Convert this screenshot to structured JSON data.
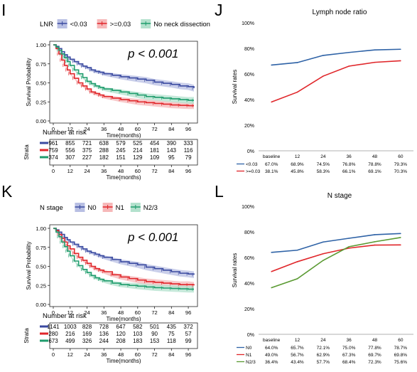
{
  "chart_data": [
    {
      "panel": "I",
      "type": "line",
      "subtype": "kaplan-meier",
      "legend_title": "LNR",
      "legend_position": "top",
      "ylabel": "Survival Probability",
      "xlabel": "Time(months)",
      "ylim": [
        0,
        1
      ],
      "xlim": [
        0,
        100
      ],
      "x_ticks": [
        "0",
        "12",
        "24",
        "36",
        "48",
        "60",
        "72",
        "84",
        "96"
      ],
      "y_ticks": [
        "0.00",
        "0.25",
        "0.50",
        "0.75",
        "1.00"
      ],
      "annotation": "p < 0.001",
      "series": [
        {
          "name": "<0.03",
          "color": "#3a4aa0",
          "band": "#b8bfe3",
          "x": [
            0,
            2,
            4,
            6,
            8,
            10,
            12,
            15,
            18,
            21,
            24,
            27,
            30,
            33,
            36,
            42,
            48,
            54,
            60,
            66,
            72,
            78,
            84,
            90,
            96,
            100
          ],
          "y": [
            1.0,
            0.98,
            0.95,
            0.91,
            0.87,
            0.84,
            0.81,
            0.78,
            0.75,
            0.72,
            0.7,
            0.67,
            0.65,
            0.64,
            0.62,
            0.6,
            0.58,
            0.565,
            0.55,
            0.535,
            0.51,
            0.495,
            0.48,
            0.46,
            0.45,
            0.43
          ]
        },
        {
          "name": ">=0.03",
          "color": "#e0262a",
          "band": "#f6b8b9",
          "x": [
            0,
            2,
            4,
            6,
            8,
            10,
            12,
            15,
            18,
            21,
            24,
            27,
            30,
            33,
            36,
            42,
            48,
            54,
            60,
            66,
            72,
            78,
            84,
            90,
            96,
            100
          ],
          "y": [
            1.0,
            0.95,
            0.88,
            0.8,
            0.73,
            0.67,
            0.62,
            0.56,
            0.5,
            0.46,
            0.42,
            0.38,
            0.36,
            0.34,
            0.32,
            0.3,
            0.28,
            0.265,
            0.25,
            0.24,
            0.23,
            0.22,
            0.21,
            0.205,
            0.2,
            0.2
          ]
        },
        {
          "name": "No neck dissection",
          "color": "#1e9c6c",
          "band": "#b3e1cd",
          "x": [
            0,
            2,
            4,
            6,
            8,
            10,
            12,
            15,
            18,
            21,
            24,
            27,
            30,
            33,
            36,
            42,
            48,
            54,
            60,
            66,
            72,
            78,
            84,
            90,
            96,
            100
          ],
          "y": [
            1.0,
            0.97,
            0.93,
            0.88,
            0.83,
            0.78,
            0.73,
            0.67,
            0.62,
            0.57,
            0.52,
            0.49,
            0.46,
            0.44,
            0.42,
            0.4,
            0.38,
            0.36,
            0.34,
            0.32,
            0.31,
            0.3,
            0.29,
            0.28,
            0.27,
            0.27
          ]
        }
      ],
      "risk_table": {
        "title": "Number at risk",
        "ylabel": "Strata",
        "xlabel": "Time(months)",
        "x_ticks": [
          "0",
          "12",
          "24",
          "36",
          "48",
          "60",
          "72",
          "84",
          "96"
        ],
        "rows": [
          {
            "color": "#3a4aa0",
            "values": [
              "961",
              "855",
              "721",
              "638",
              "579",
              "525",
              "454",
              "390",
              "333"
            ]
          },
          {
            "color": "#e0262a",
            "values": [
              "759",
              "556",
              "375",
              "288",
              "245",
              "214",
              "181",
              "143",
              "116"
            ]
          },
          {
            "color": "#1e9c6c",
            "values": [
              "374",
              "307",
              "227",
              "182",
              "151",
              "129",
              "109",
              "95",
              "79"
            ]
          }
        ]
      }
    },
    {
      "panel": "J",
      "type": "line",
      "title": "Lymph node ratio",
      "ylabel": "Survival rates",
      "ylim": [
        0,
        100
      ],
      "y_ticks": [
        "0%",
        "20%",
        "40%",
        "60%",
        "80%",
        "100%"
      ],
      "categories": [
        "baseline",
        "12",
        "24",
        "36",
        "48",
        "60"
      ],
      "series": [
        {
          "name": "<0.03",
          "color": "#2e62a6",
          "values": [
            67.0,
            68.9,
            74.5,
            76.8,
            78.8,
            79.3
          ],
          "labels": [
            "67.0%",
            "68.9%",
            "74.5%",
            "76.8%",
            "78.8%",
            "79.3%"
          ]
        },
        {
          "name": ">=0.03",
          "color": "#e0262a",
          "values": [
            38.1,
            45.8,
            58.3,
            66.1,
            69.1,
            70.3
          ],
          "labels": [
            "38.1%",
            "45.8%",
            "58.3%",
            "66.1%",
            "69.1%",
            "70.3%"
          ]
        }
      ]
    },
    {
      "panel": "K",
      "type": "line",
      "subtype": "kaplan-meier",
      "legend_title": "N stage",
      "legend_position": "top",
      "ylabel": "Survival Probability",
      "xlabel": "Time(months)",
      "ylim": [
        0,
        1
      ],
      "xlim": [
        0,
        100
      ],
      "x_ticks": [
        "0",
        "12",
        "24",
        "36",
        "48",
        "60",
        "72",
        "84",
        "96"
      ],
      "y_ticks": [
        "0.00",
        "0.25",
        "0.50",
        "0.75",
        "1.00"
      ],
      "annotation": "p < 0.001",
      "series": [
        {
          "name": "N0",
          "color": "#3a4aa0",
          "band": "#b8bfe3",
          "x": [
            0,
            2,
            4,
            6,
            8,
            10,
            12,
            15,
            18,
            21,
            24,
            27,
            30,
            33,
            36,
            42,
            48,
            54,
            60,
            66,
            72,
            78,
            84,
            90,
            96,
            100
          ],
          "y": [
            1.0,
            0.98,
            0.95,
            0.92,
            0.88,
            0.85,
            0.82,
            0.79,
            0.76,
            0.73,
            0.7,
            0.68,
            0.66,
            0.64,
            0.62,
            0.59,
            0.56,
            0.54,
            0.52,
            0.49,
            0.47,
            0.45,
            0.43,
            0.41,
            0.4,
            0.39
          ]
        },
        {
          "name": "N1",
          "color": "#e0262a",
          "band": "#f6b8b9",
          "x": [
            0,
            2,
            4,
            6,
            8,
            10,
            12,
            15,
            18,
            21,
            24,
            27,
            30,
            33,
            36,
            42,
            48,
            54,
            60,
            66,
            72,
            78,
            84,
            90,
            96,
            100
          ],
          "y": [
            1.0,
            0.97,
            0.92,
            0.87,
            0.82,
            0.77,
            0.73,
            0.67,
            0.62,
            0.58,
            0.54,
            0.5,
            0.47,
            0.45,
            0.43,
            0.39,
            0.36,
            0.34,
            0.32,
            0.3,
            0.29,
            0.28,
            0.27,
            0.26,
            0.26,
            0.25
          ]
        },
        {
          "name": "N2/3",
          "color": "#1e9c6c",
          "band": "#b3e1cd",
          "x": [
            0,
            2,
            4,
            6,
            8,
            10,
            12,
            15,
            18,
            21,
            24,
            27,
            30,
            33,
            36,
            42,
            48,
            54,
            60,
            66,
            72,
            78,
            84,
            90,
            96,
            100
          ],
          "y": [
            1.0,
            0.95,
            0.89,
            0.82,
            0.76,
            0.7,
            0.64,
            0.57,
            0.51,
            0.46,
            0.42,
            0.38,
            0.35,
            0.33,
            0.31,
            0.28,
            0.26,
            0.25,
            0.24,
            0.23,
            0.22,
            0.215,
            0.21,
            0.205,
            0.2,
            0.2
          ]
        }
      ],
      "risk_table": {
        "title": "Number at risk",
        "ylabel": "Strata",
        "xlabel": "Time(months)",
        "x_ticks": [
          "0",
          "12",
          "24",
          "36",
          "48",
          "60",
          "72",
          "84",
          "96"
        ],
        "rows": [
          {
            "color": "#3a4aa0",
            "values": [
              "1141",
              "1003",
              "828",
              "728",
              "647",
              "582",
              "501",
              "435",
              "372"
            ]
          },
          {
            "color": "#e0262a",
            "values": [
              "280",
              "216",
              "169",
              "136",
              "120",
              "103",
              "90",
              "75",
              "57"
            ]
          },
          {
            "color": "#1e9c6c",
            "values": [
              "673",
              "499",
              "326",
              "244",
              "208",
              "183",
              "153",
              "118",
              "99"
            ]
          }
        ]
      }
    },
    {
      "panel": "L",
      "type": "line",
      "title": "N stage",
      "ylabel": "Survival rates",
      "ylim": [
        0,
        100
      ],
      "y_ticks": [
        "0%",
        "20%",
        "40%",
        "60%",
        "80%",
        "100%"
      ],
      "categories": [
        "baseline",
        "12",
        "24",
        "36",
        "48",
        "60"
      ],
      "series": [
        {
          "name": "N0",
          "color": "#2e62a6",
          "values": [
            64.0,
            65.7,
            72.1,
            75.0,
            77.8,
            78.7
          ],
          "labels": [
            "64.0%",
            "65.7%",
            "72.1%",
            "75.0%",
            "77.8%",
            "78.7%"
          ]
        },
        {
          "name": "N1",
          "color": "#e0262a",
          "values": [
            49.0,
            56.7,
            62.9,
            67.3,
            69.7,
            69.8
          ],
          "labels": [
            "49.0%",
            "56.7%",
            "62.9%",
            "67.3%",
            "69.7%",
            "69.8%"
          ]
        },
        {
          "name": "N2/3",
          "color": "#5a9a32",
          "values": [
            36.4,
            43.4,
            57.7,
            68.4,
            72.3,
            75.6
          ],
          "labels": [
            "36.4%",
            "43.4%",
            "57.7%",
            "68.4%",
            "72.3%",
            "75.6%"
          ]
        }
      ]
    }
  ]
}
